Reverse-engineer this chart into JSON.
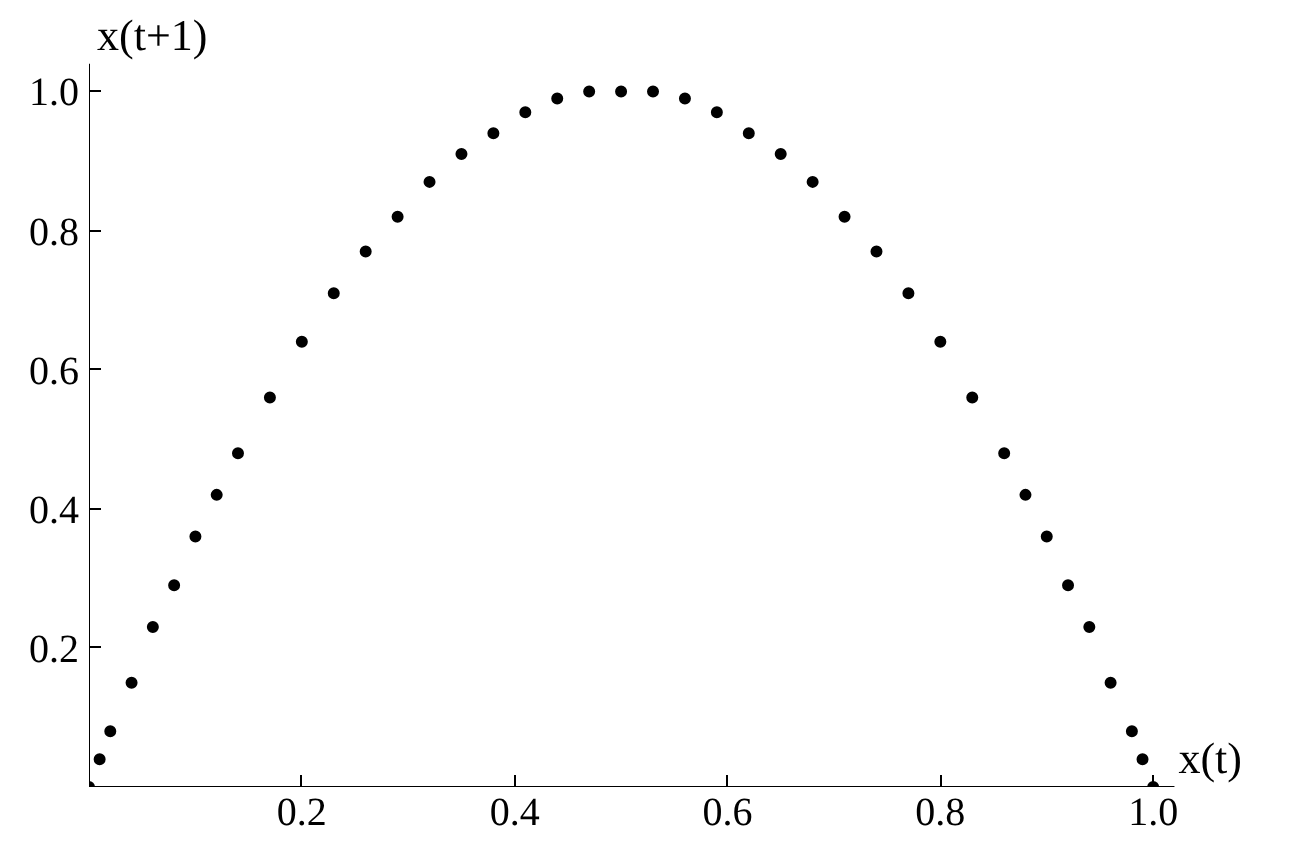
{
  "chart_data": {
    "type": "scatter",
    "xlabel": "x(t)",
    "ylabel": "x(t+1)",
    "marker": "circle",
    "grid": false,
    "x": [
      0,
      0.01,
      0.02,
      0.04,
      0.06,
      0.08,
      0.1,
      0.12,
      0.14,
      0.17,
      0.2,
      0.23,
      0.26,
      0.29,
      0.32,
      0.35,
      0.38,
      0.41,
      0.44,
      0.47,
      0.5,
      0.53,
      0.56,
      0.59,
      0.62,
      0.65,
      0.68,
      0.71,
      0.74,
      0.77,
      0.8,
      0.83,
      0.86,
      0.88,
      0.9,
      0.92,
      0.94,
      0.96,
      0.98,
      0.99,
      1.0
    ],
    "series": [
      {
        "color": "#000000",
        "values": [
          0,
          0.04,
          0.08,
          0.15,
          0.23,
          0.29,
          0.36,
          0.42,
          0.48,
          0.56,
          0.64,
          0.71,
          0.77,
          0.82,
          0.87,
          0.91,
          0.94,
          0.97,
          0.99,
          1.0,
          1.0,
          1.0,
          0.99,
          0.97,
          0.94,
          0.91,
          0.87,
          0.82,
          0.77,
          0.71,
          0.64,
          0.56,
          0.48,
          0.42,
          0.36,
          0.29,
          0.23,
          0.15,
          0.08,
          0.04,
          0
        ]
      }
    ],
    "xlim": [
      0,
      1.02
    ],
    "ylim": [
      0,
      1.04
    ],
    "xticks": [
      0.2,
      0.4,
      0.6,
      0.8,
      {
        "value": 1,
        "label": "1.0"
      }
    ],
    "yticks": [
      0.2,
      0.4,
      0.6,
      0.8,
      {
        "value": 1,
        "label": "1.0"
      }
    ]
  }
}
